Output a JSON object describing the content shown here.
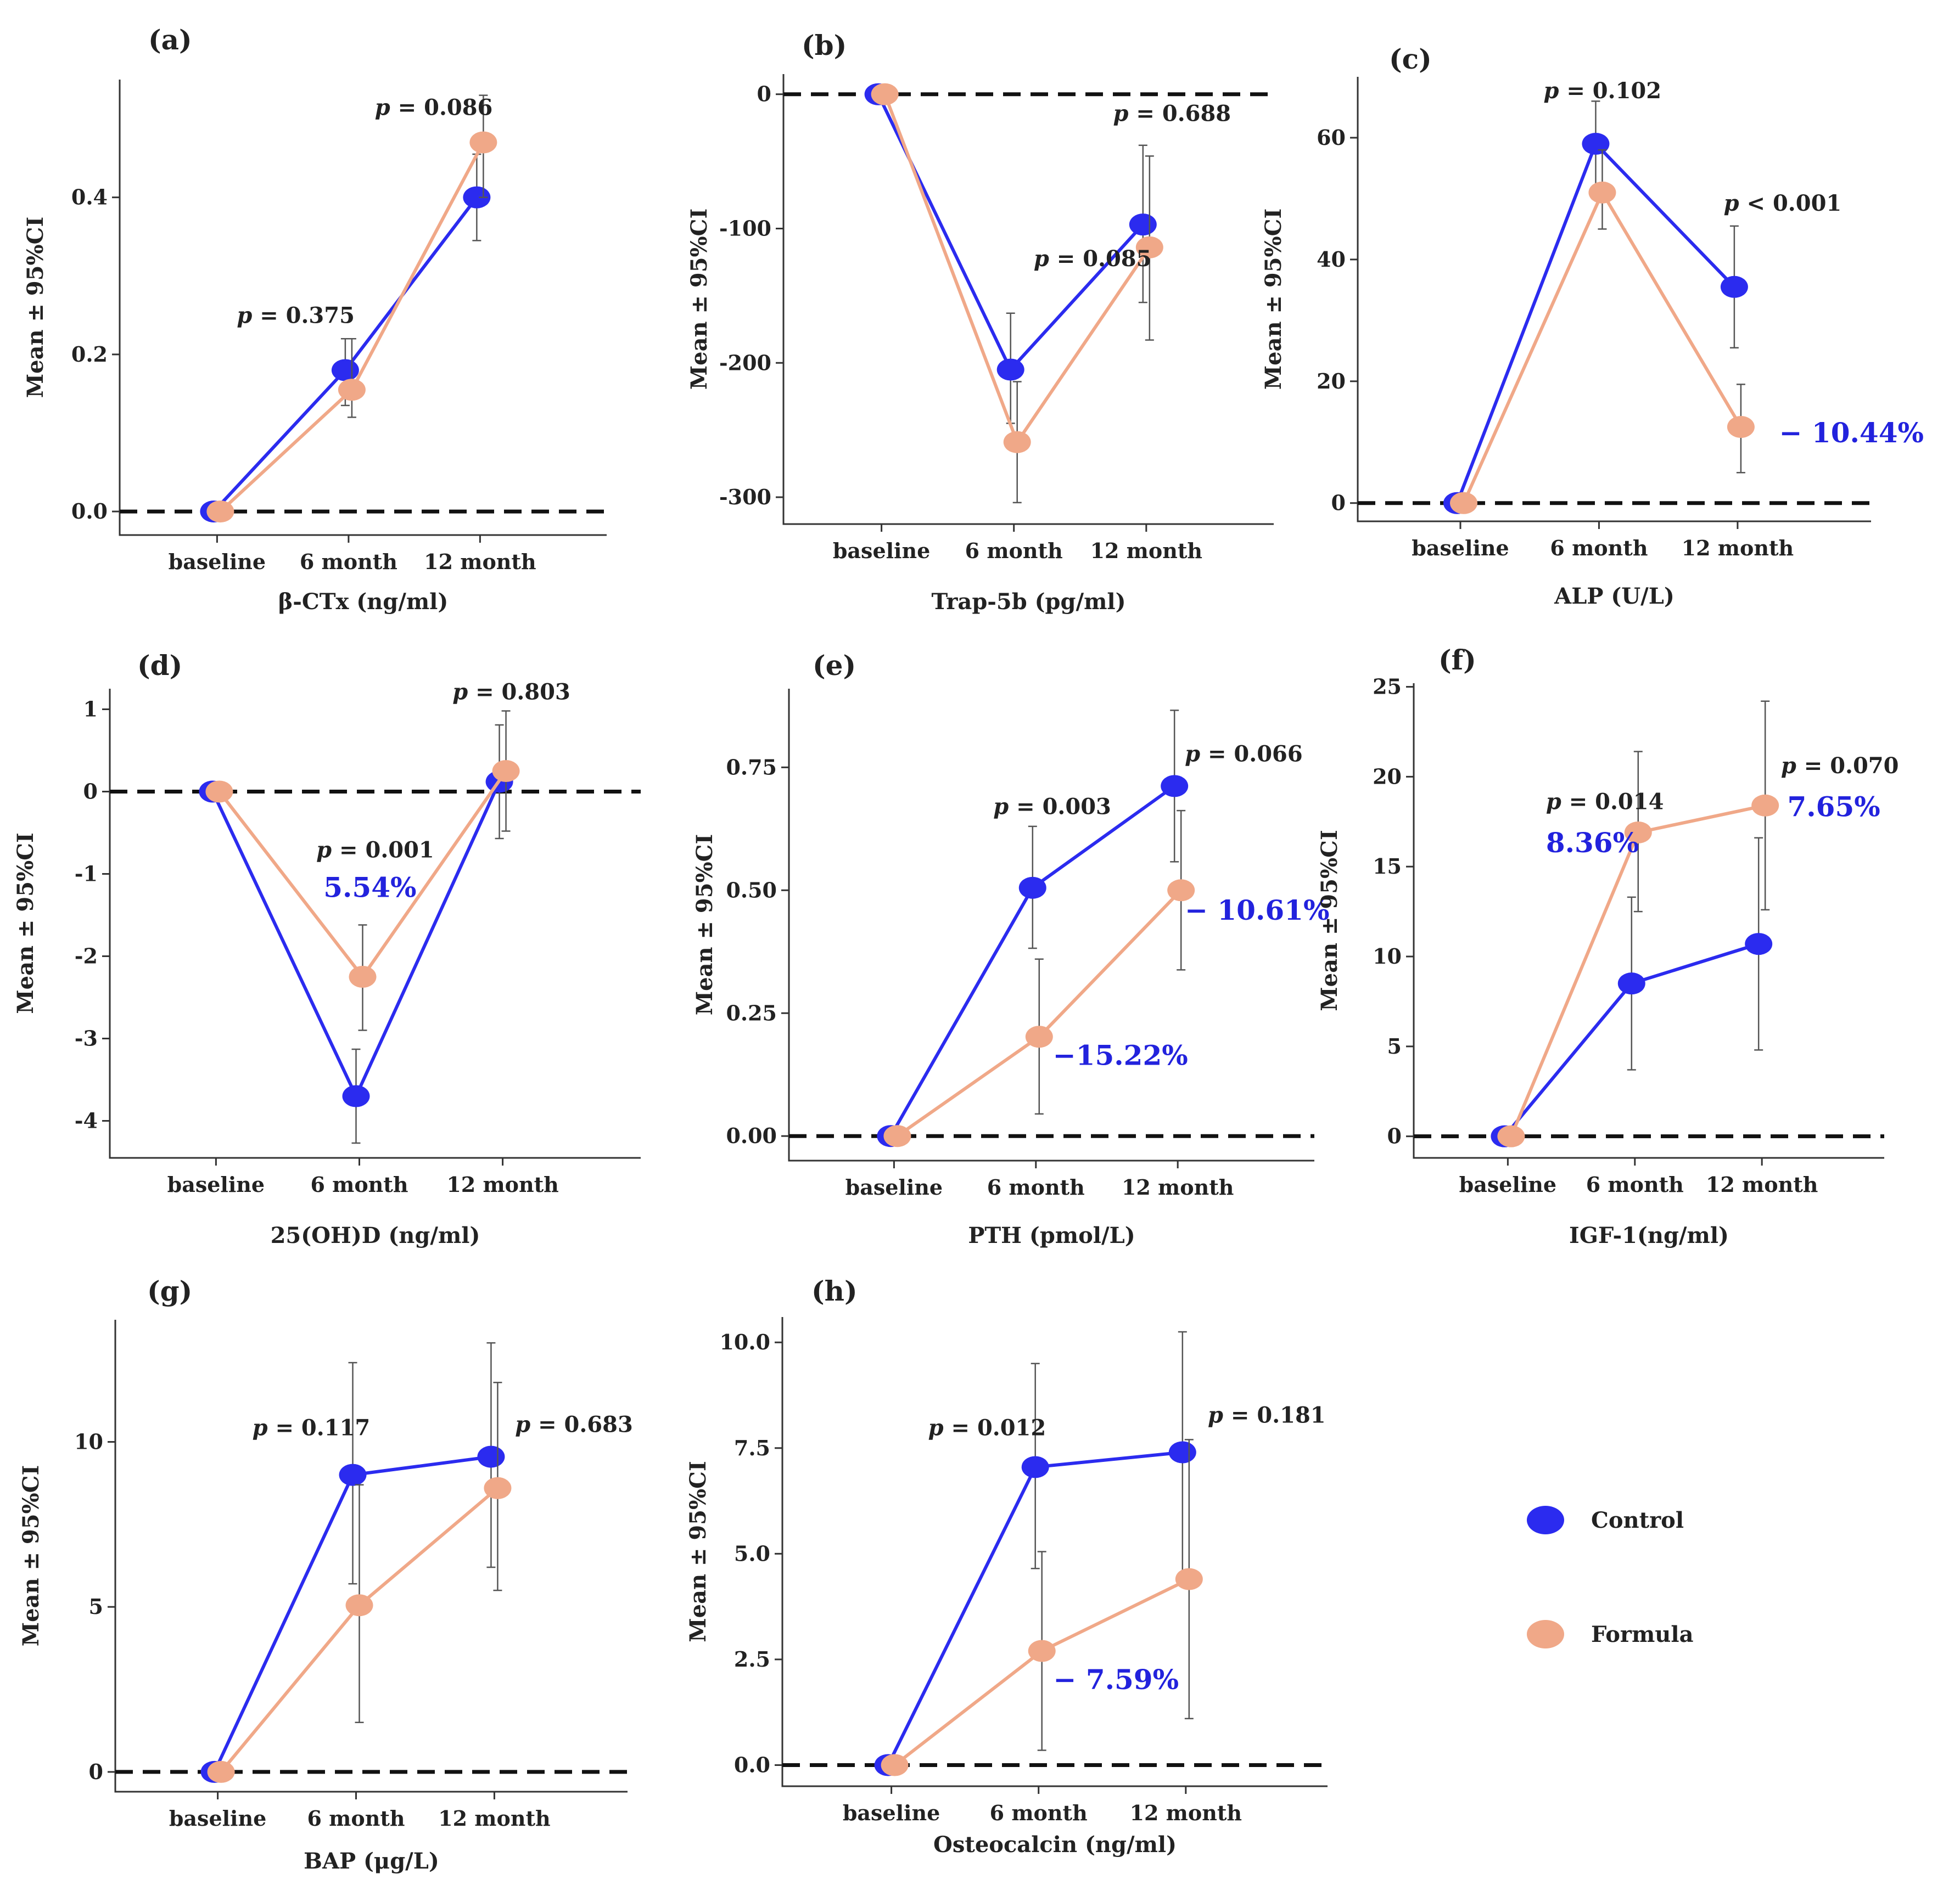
{
  "colors": {
    "control": "#2b2bef",
    "formula": "#f0a888",
    "pct_text": "#2222dd"
  },
  "legend": {
    "items": [
      {
        "name": "Control",
        "color": "#2b2bef"
      },
      {
        "name": "Formula",
        "color": "#f0a888"
      }
    ]
  },
  "chart_data": [
    {
      "type": "line",
      "panel": "(a)",
      "title": "(a)",
      "xlabel": "β-CTx (ng/ml)",
      "ylabel": "Mean ± 95%CI",
      "categories": [
        "baseline",
        "6 month",
        "12 month"
      ],
      "ylim": [
        -0.03,
        0.55
      ],
      "yticks": [
        0.0,
        0.2,
        0.4
      ],
      "tick_labels": [
        "0.0",
        "0.2",
        "0.4"
      ],
      "series": [
        {
          "name": "Control",
          "values": [
            0,
            0.18,
            0.4
          ],
          "lower": [
            null,
            0.135,
            0.345
          ],
          "upper": [
            null,
            0.22,
            0.455
          ]
        },
        {
          "name": "Formula",
          "values": [
            0,
            0.155,
            0.47
          ],
          "lower": [
            null,
            0.12,
            0.4
          ],
          "upper": [
            null,
            0.22,
            0.53
          ]
        }
      ],
      "annotations": [
        {
          "cat": 1,
          "y": 0.24,
          "p": "0.375",
          "dx": -0.85
        },
        {
          "cat": 2,
          "y": 0.505,
          "p": "0.086",
          "dx": -0.8
        }
      ]
    },
    {
      "type": "line",
      "panel": "(b)",
      "title": "(b)",
      "xlabel": "Trap-5b (pg/ml)",
      "ylabel": "Mean ± 95%CI",
      "categories": [
        "baseline",
        "6 month",
        "12 month"
      ],
      "ylim": [
        -320,
        15
      ],
      "yticks": [
        0,
        -100,
        -200,
        -300
      ],
      "tick_labels": [
        "0",
        "-100",
        "-200",
        "-300"
      ],
      "series": [
        {
          "name": "Control",
          "values": [
            0,
            -205,
            -97
          ],
          "lower": [
            null,
            -245,
            -155
          ],
          "upper": [
            null,
            -163,
            -38
          ]
        },
        {
          "name": "Formula",
          "values": [
            0,
            -259,
            -114
          ],
          "lower": [
            null,
            -304,
            -183
          ],
          "upper": [
            null,
            -214,
            -46
          ]
        }
      ],
      "annotations": [
        {
          "cat": 1,
          "y": -128,
          "p": "0.085",
          "dx": 0.15
        },
        {
          "cat": 2,
          "y": -20,
          "p": "0.688",
          "dx": -0.25
        }
      ]
    },
    {
      "type": "line",
      "panel": "(c)",
      "title": "(c)",
      "xlabel": "ALP (U/L)",
      "ylabel": "Mean ± 95%CI",
      "categories": [
        "baseline",
        "6 month",
        "12 month"
      ],
      "ylim": [
        -3,
        70
      ],
      "yticks": [
        0,
        20,
        40,
        60
      ],
      "tick_labels": [
        "0",
        "20",
        "40",
        "60"
      ],
      "series": [
        {
          "name": "Control",
          "values": [
            0,
            59,
            35.5
          ],
          "lower": [
            null,
            50,
            25.5
          ],
          "upper": [
            null,
            66,
            45.5
          ]
        },
        {
          "name": "Formula",
          "values": [
            0,
            51,
            12.5
          ],
          "lower": [
            null,
            45,
            5
          ],
          "upper": [
            null,
            58,
            19.5
          ]
        }
      ],
      "annotations": [
        {
          "cat": 1,
          "y": 66.5,
          "p": "0.102",
          "dx": -0.4
        },
        {
          "cat": 2,
          "y": 48,
          "p": "< 0.001",
          "dx": -0.1,
          "sep": " "
        }
      ],
      "percent_labels": [
        {
          "cat": 2,
          "y": 10,
          "text": "− 10.44%",
          "dx": 0.3
        }
      ]
    },
    {
      "type": "line",
      "panel": "(d)",
      "title": "(d)",
      "xlabel": "25(OH)D (ng/ml)",
      "ylabel": "Mean ± 95%CI",
      "categories": [
        "baseline",
        "6 month",
        "12 month"
      ],
      "ylim": [
        -4.45,
        1.25
      ],
      "yticks": [
        1,
        0,
        -1,
        -2,
        -3,
        -4
      ],
      "tick_labels": [
        "1",
        "0",
        "-1",
        "-2",
        "-3",
        "-4"
      ],
      "series": [
        {
          "name": "Control",
          "values": [
            0,
            -3.7,
            0.12
          ],
          "lower": [
            null,
            -4.27,
            -0.57
          ],
          "upper": [
            null,
            -3.13,
            0.81
          ]
        },
        {
          "name": "Formula",
          "values": [
            0,
            -2.25,
            0.25
          ],
          "lower": [
            null,
            -2.9,
            -0.48
          ],
          "upper": [
            null,
            -1.62,
            0.98
          ]
        }
      ],
      "annotations": [
        {
          "cat": 1,
          "y": -0.8,
          "p": "0.001",
          "dx": -0.3
        },
        {
          "cat": 2,
          "y": 1.12,
          "p": "0.803",
          "dx": -0.35
        }
      ],
      "percent_labels": [
        {
          "cat": 1,
          "y": -1.28,
          "text": "5.54%",
          "dx": -0.25
        }
      ]
    },
    {
      "type": "line",
      "panel": "(e)",
      "title": "(e)",
      "xlabel": "PTH (pmol/L)",
      "ylabel": "Mean ± 95%CI",
      "categories": [
        "baseline",
        "6 month",
        "12 month"
      ],
      "ylim": [
        -0.05,
        0.91
      ],
      "yticks": [
        0.0,
        0.25,
        0.5,
        0.75
      ],
      "tick_labels": [
        "0.00",
        "0.25",
        "0.50",
        "0.75"
      ],
      "series": [
        {
          "name": "Control",
          "values": [
            0,
            0.505,
            0.712
          ],
          "lower": [
            null,
            0.382,
            0.558
          ],
          "upper": [
            null,
            0.63,
            0.866
          ]
        },
        {
          "name": "Formula",
          "values": [
            0,
            0.202,
            0.5
          ],
          "lower": [
            null,
            0.045,
            0.338
          ],
          "upper": [
            null,
            0.36,
            0.662
          ]
        }
      ],
      "annotations": [
        {
          "cat": 1,
          "y": 0.655,
          "p": "0.003",
          "dx": -0.3
        },
        {
          "cat": 2,
          "y": 0.762,
          "p": "0.066",
          "dx": 0.05
        }
      ],
      "percent_labels": [
        {
          "cat": 2,
          "y": 0.44,
          "text": "− 10.61%",
          "dx": 0.05
        },
        {
          "cat": 1,
          "y": 0.145,
          "text": "−15.22%",
          "dx": 0.12
        }
      ]
    },
    {
      "type": "line",
      "panel": "(f)",
      "title": "(f)",
      "xlabel": "IGF-1(ng/ml)",
      "ylabel": "Mean ± 95%CI",
      "categories": [
        "baseline",
        "6 month",
        "12 month"
      ],
      "ylim": [
        -1.2,
        25.2
      ],
      "yticks": [
        0,
        5,
        10,
        15,
        20,
        25
      ],
      "tick_labels": [
        "0",
        "5",
        "10",
        "15",
        "20",
        "25"
      ],
      "series": [
        {
          "name": "Control",
          "values": [
            0,
            8.5,
            10.7
          ],
          "lower": [
            null,
            3.7,
            4.8
          ],
          "upper": [
            null,
            13.3,
            16.6
          ]
        },
        {
          "name": "Formula",
          "values": [
            0,
            16.9,
            18.4
          ],
          "lower": [
            null,
            12.5,
            12.6
          ],
          "upper": [
            null,
            21.4,
            24.2
          ]
        }
      ],
      "annotations": [
        {
          "cat": 1,
          "y": 18.2,
          "p": "0.014",
          "dx": -0.7
        },
        {
          "cat": 2,
          "y": 20.2,
          "p": "0.070",
          "dx": 0.15
        }
      ],
      "percent_labels": [
        {
          "cat": 1,
          "y": 15.8,
          "text": "8.36%",
          "dx": -0.7
        },
        {
          "cat": 2,
          "y": 17.8,
          "text": "7.65%",
          "dx": 0.2
        }
      ]
    },
    {
      "type": "line",
      "panel": "(g)",
      "title": "(g)",
      "xlabel": "BAP (μg/L)",
      "ylabel": "Mean ± 95%CI",
      "categories": [
        "baseline",
        "6 month",
        "12 month"
      ],
      "ylim": [
        -0.6,
        13.7
      ],
      "yticks": [
        0,
        5,
        10
      ],
      "tick_labels": [
        "0",
        "5",
        "10"
      ],
      "series": [
        {
          "name": "Control",
          "values": [
            0,
            9.0,
            9.55
          ],
          "lower": [
            null,
            5.7,
            6.2
          ],
          "upper": [
            null,
            12.4,
            13.0
          ]
        },
        {
          "name": "Formula",
          "values": [
            0,
            5.05,
            8.6
          ],
          "lower": [
            null,
            1.5,
            5.5
          ],
          "upper": [
            null,
            8.7,
            11.8
          ]
        }
      ],
      "annotations": [
        {
          "cat": 1,
          "y": 10.2,
          "p": "0.117",
          "dx": -0.75
        },
        {
          "cat": 2,
          "y": 10.3,
          "p": "0.683",
          "dx": 0.15
        }
      ]
    },
    {
      "type": "line",
      "panel": "(h)",
      "title": "(h)",
      "xlabel": "Osteocalcin (ng/ml)",
      "ylabel": "Mean ± 95%CI",
      "categories": [
        "baseline",
        "6 month",
        "12 month"
      ],
      "ylim": [
        -0.5,
        10.6
      ],
      "yticks": [
        0.0,
        2.5,
        5.0,
        7.5,
        10.0
      ],
      "tick_labels": [
        "0.0",
        "2.5",
        "5.0",
        "7.5",
        "10.0"
      ],
      "series": [
        {
          "name": "Control",
          "values": [
            0,
            7.05,
            7.4
          ],
          "lower": [
            null,
            4.65,
            4.5
          ],
          "upper": [
            null,
            9.5,
            10.25
          ]
        },
        {
          "name": "Formula",
          "values": [
            0,
            2.7,
            4.4
          ],
          "lower": [
            null,
            0.35,
            1.1
          ],
          "upper": [
            null,
            5.05,
            7.7
          ]
        }
      ],
      "annotations": [
        {
          "cat": 1,
          "y": 7.8,
          "p": "0.012",
          "dx": -0.75
        },
        {
          "cat": 2,
          "y": 8.1,
          "p": "0.181",
          "dx": 0.15
        }
      ],
      "percent_labels": [
        {
          "cat": 1,
          "y": 1.8,
          "text": "− 7.59%",
          "dx": 0.1
        }
      ]
    }
  ]
}
